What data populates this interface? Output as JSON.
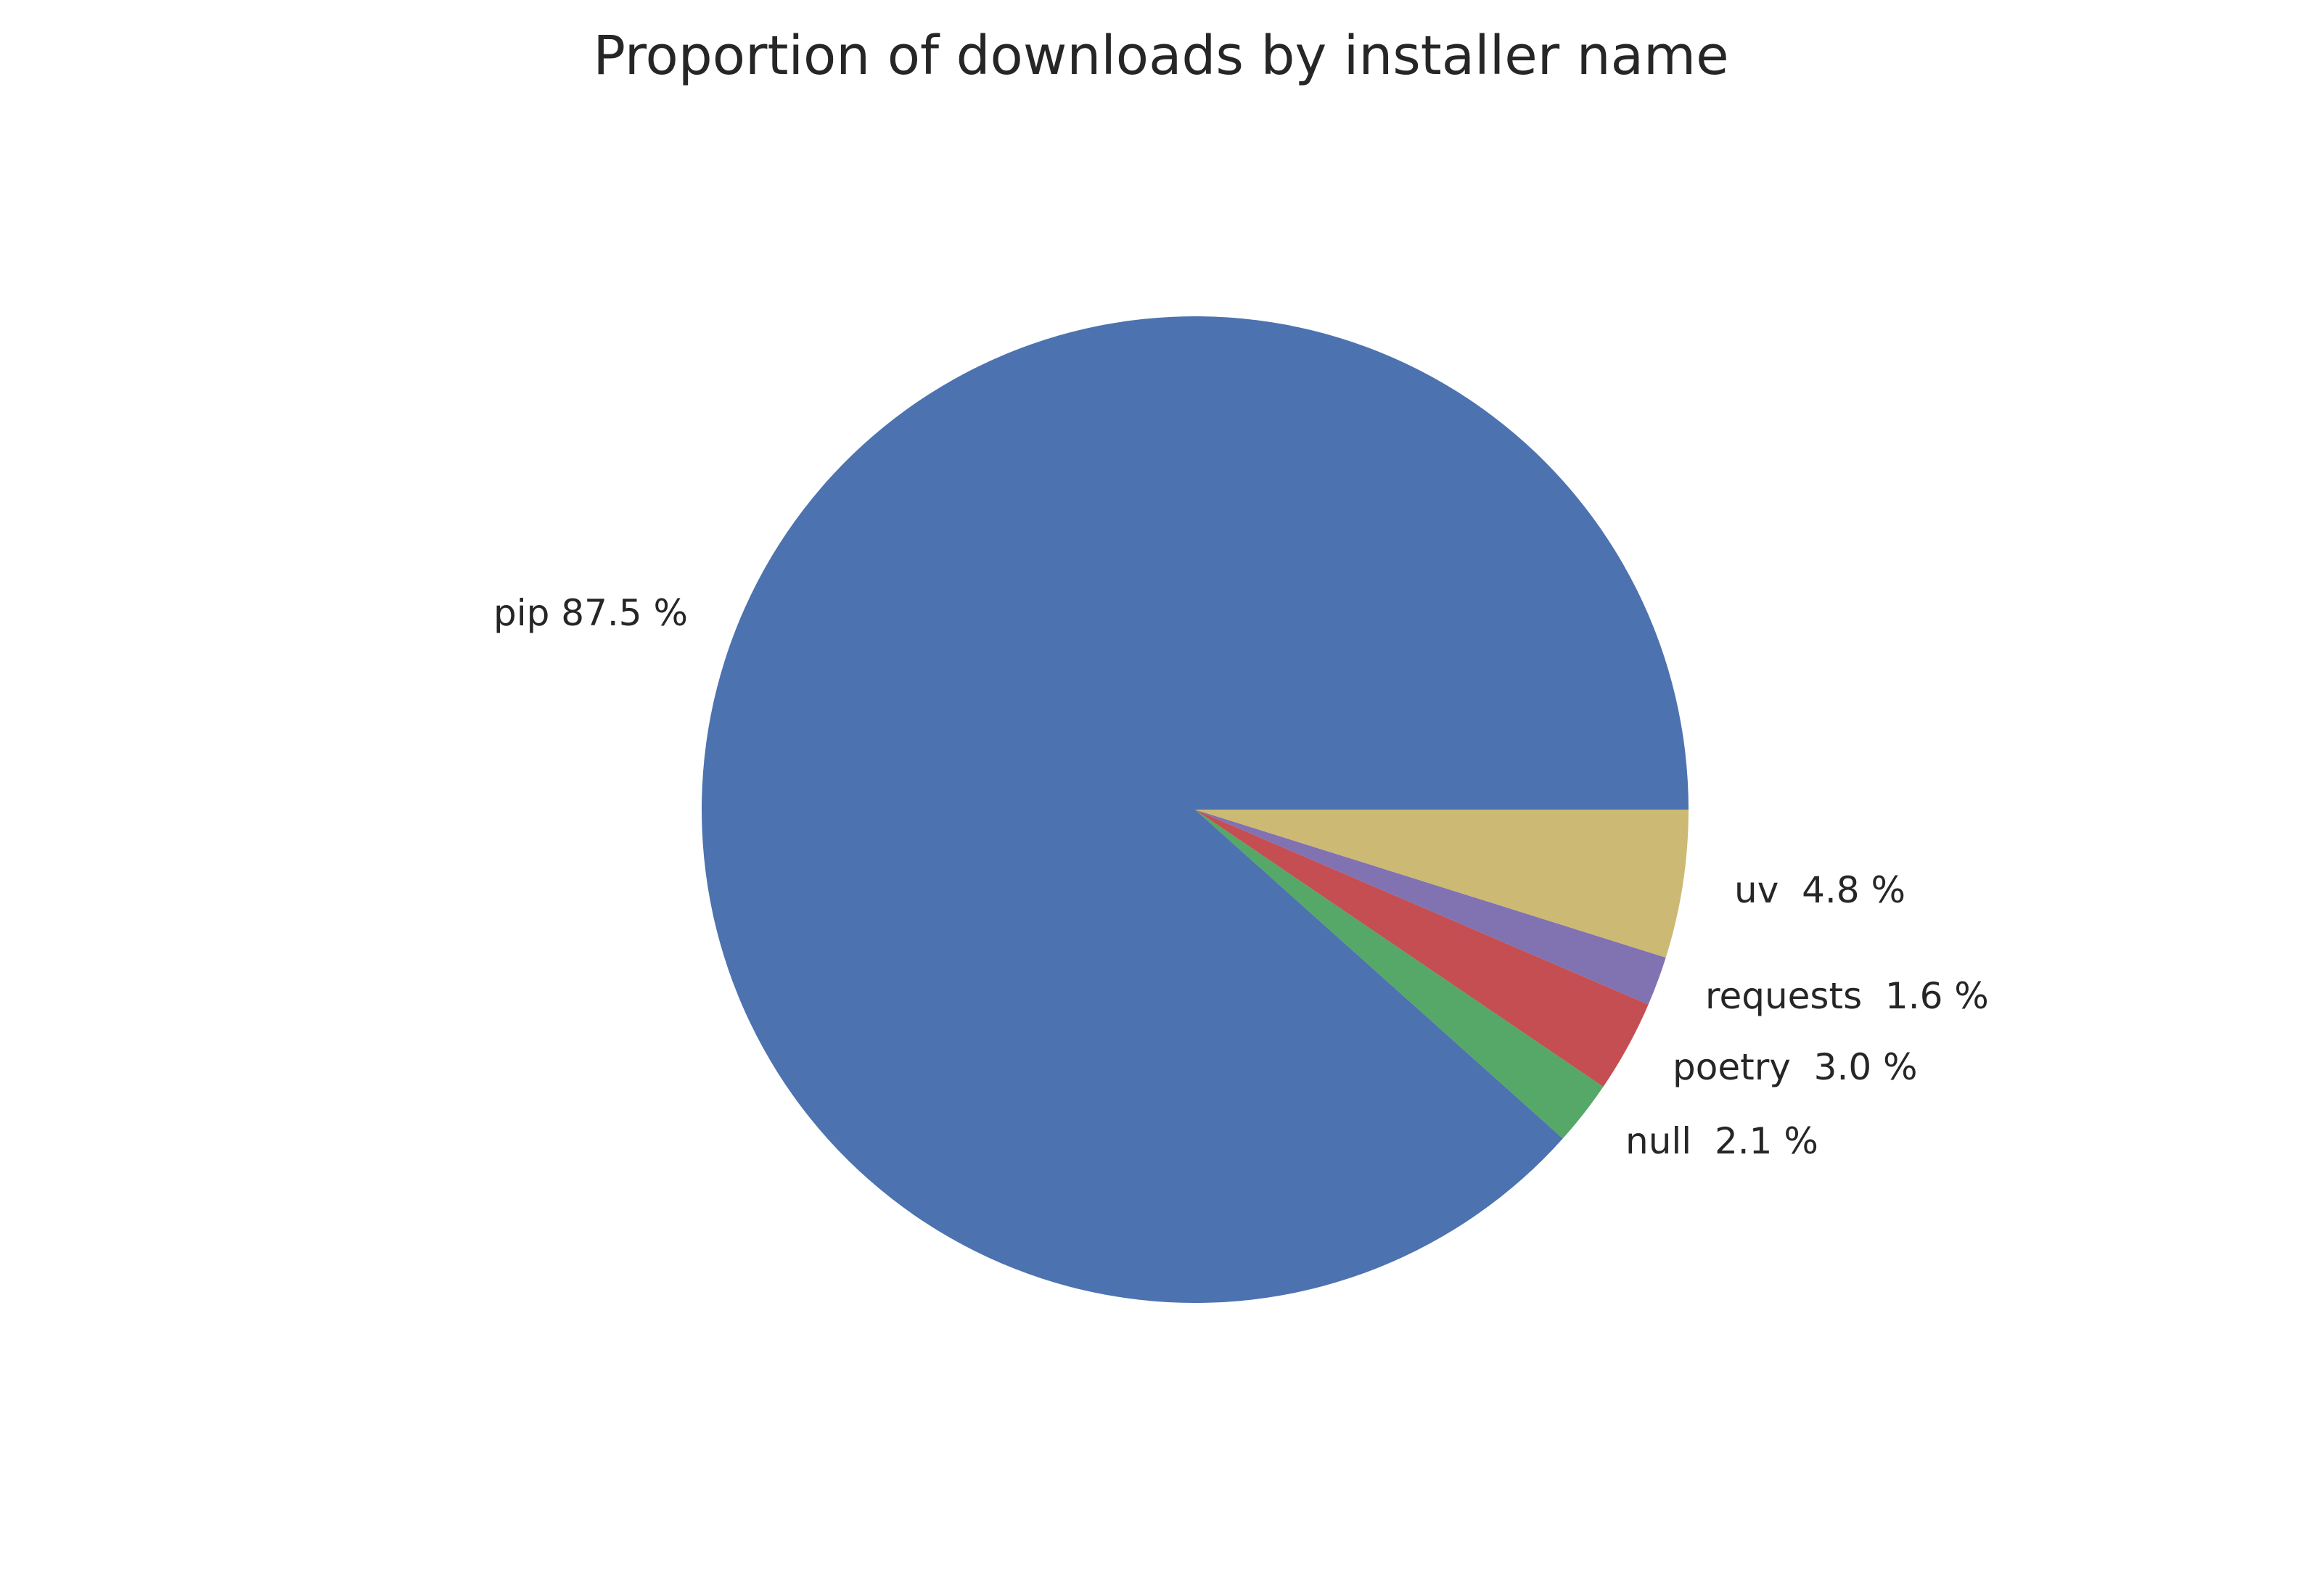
{
  "chart_data": {
    "type": "pie",
    "title": "Proportion of downloads by installer name",
    "start_angle_deg": 0,
    "direction": "counterclockwise",
    "slices": [
      {
        "name": "pip",
        "value": 87.5,
        "label": "pip 87.5 %",
        "color": "#4C72B0"
      },
      {
        "name": "null",
        "value": 2.1,
        "label": "null  2.1 %",
        "color": "#55A868"
      },
      {
        "name": "poetry",
        "value": 3.0,
        "label": "poetry  3.0 %",
        "color": "#C44E52"
      },
      {
        "name": "requests",
        "value": 1.6,
        "label": "requests  1.6 %",
        "color": "#8172B2"
      },
      {
        "name": "uv",
        "value": 4.8,
        "label": "uv  4.8 %",
        "color": "#CCB974"
      }
    ]
  }
}
